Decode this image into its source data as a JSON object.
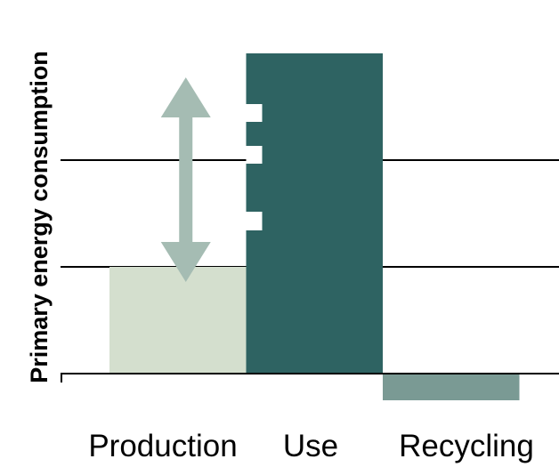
{
  "chart_data": {
    "type": "bar",
    "title": "",
    "xlabel": "",
    "ylabel": "Primary energy consumption",
    "categories": [
      "Production",
      "Use",
      "Recycling"
    ],
    "values": [
      1.0,
      3.0,
      -0.25
    ],
    "ylim": [
      -0.5,
      3.0
    ],
    "grid": true,
    "gridlines": [
      1.0,
      2.0
    ],
    "legend": "none",
    "annotations": [
      {
        "kind": "double-arrow",
        "category": "Production",
        "from": 1.0,
        "to": 2.5
      }
    ],
    "colors": {
      "Production": "#d4dfce",
      "Use": "#2e6362",
      "Recycling": "#7a9a94",
      "arrow": "#a5bcb3",
      "line": "#000000"
    }
  }
}
